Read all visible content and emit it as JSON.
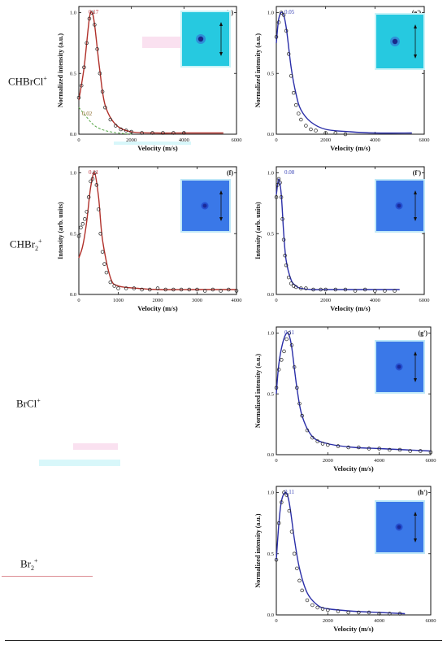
{
  "row_labels": {
    "chbrcl": {
      "base": "CHBrCl",
      "sup": "+"
    },
    "chbr2": {
      "base": "CHBr",
      "sub": "2",
      "sup": "+"
    },
    "brcl": {
      "base": "BrCl",
      "sup": "+"
    },
    "br2": {
      "base": "Br",
      "sub": "2",
      "sup": "+"
    }
  },
  "colors": {
    "red_fit": "#b0302a",
    "blue_fit": "#2a2ea8",
    "data_points": "#222222",
    "dashed_component": "#5aa84a",
    "panel_e_inset_bg": "#26c9e0",
    "panel_blue_inset_bg": "#3a78e8",
    "pink_annotation": "#c0303a",
    "blue_annotation": "#3b46b8"
  },
  "chart_data": [
    {
      "panel": "e",
      "tag": "(e)",
      "type": "line",
      "xlabel": "Velocity (m/s)",
      "ylabel": "Normalized intensity (a.u.)",
      "xlim": [
        0,
        6000
      ],
      "ylim": [
        0,
        1.05
      ],
      "xticks": [
        0,
        2000,
        4000,
        6000
      ],
      "yticks": [
        0.0,
        0.5,
        1.0
      ],
      "xtick_labels": [
        "0",
        "2000",
        "4000",
        "6000"
      ],
      "ytick_labels": [
        "0.0",
        "0.5",
        "1.0"
      ],
      "annotations": [
        "0.17",
        "0.02"
      ],
      "fit_color": "red",
      "points": {
        "x": [
          0,
          100,
          200,
          300,
          400,
          500,
          600,
          700,
          800,
          900,
          1000,
          1200,
          1400,
          1600,
          1800,
          2000,
          2400,
          2800,
          3200,
          3600,
          4000
        ],
        "y": [
          0.3,
          0.4,
          0.55,
          0.75,
          0.95,
          1.0,
          0.9,
          0.7,
          0.5,
          0.35,
          0.22,
          0.12,
          0.07,
          0.04,
          0.03,
          0.02,
          0.01,
          0.01,
          0.01,
          0.01,
          0.01
        ]
      },
      "fit": {
        "x": [
          0,
          200,
          400,
          500,
          600,
          800,
          1000,
          1400,
          2000,
          3000,
          4000,
          5500
        ],
        "y": [
          0.28,
          0.55,
          0.95,
          1.0,
          0.9,
          0.52,
          0.24,
          0.08,
          0.02,
          0.01,
          0.01,
          0.01
        ]
      },
      "component": {
        "x": [
          0,
          300,
          600,
          1000,
          1500,
          2000
        ],
        "y": [
          0.22,
          0.14,
          0.07,
          0.03,
          0.01,
          0.0
        ]
      },
      "inset": "cyan"
    },
    {
      "panel": "e'",
      "tag": "(e')",
      "type": "line",
      "xlabel": "Velocity (m/s)",
      "ylabel": "Normalized intensity (a.u.)",
      "xlim": [
        0,
        6000
      ],
      "ylim": [
        0,
        1.05
      ],
      "xticks": [
        0,
        2000,
        4000,
        6000
      ],
      "yticks": [
        0.0,
        0.5,
        1.0
      ],
      "xtick_labels": [
        "0",
        "2000",
        "4000",
        "6000"
      ],
      "ytick_labels": [
        "0.0",
        "0.5",
        "1.0"
      ],
      "annotations": [
        "0.05"
      ],
      "fit_color": "blue",
      "points": {
        "x": [
          0,
          100,
          200,
          300,
          400,
          500,
          600,
          700,
          800,
          900,
          1000,
          1200,
          1400,
          1600,
          2000,
          2400,
          2800
        ],
        "y": [
          0.8,
          0.92,
          1.0,
          0.98,
          0.85,
          0.66,
          0.48,
          0.34,
          0.24,
          0.17,
          0.12,
          0.07,
          0.04,
          0.03,
          0.01,
          0.01,
          0.0
        ]
      },
      "fit": {
        "x": [
          0,
          100,
          250,
          400,
          600,
          800,
          1000,
          1400,
          2000,
          3000,
          4000,
          5500
        ],
        "y": [
          0.75,
          0.95,
          1.0,
          0.88,
          0.55,
          0.33,
          0.2,
          0.1,
          0.04,
          0.02,
          0.01,
          0.01
        ]
      },
      "inset": "cyan"
    },
    {
      "panel": "f",
      "tag": "(f)",
      "type": "line",
      "xlabel": "Velocity (m/s)",
      "ylabel": "Intensity (arb. units)",
      "xlim": [
        0,
        4000
      ],
      "ylim": [
        0,
        1.05
      ],
      "xticks": [
        0,
        1000,
        2000,
        3000,
        4000
      ],
      "yticks": [
        0.0,
        0.5,
        1.0
      ],
      "xtick_labels": [
        "0",
        "1000",
        "2000",
        "3000",
        "4000"
      ],
      "ytick_labels": [
        "0.0",
        "0.5",
        "1.0"
      ],
      "annotations": [
        "0.11"
      ],
      "fit_color": "red",
      "points": {
        "x": [
          0,
          50,
          100,
          150,
          200,
          250,
          300,
          350,
          400,
          450,
          500,
          550,
          600,
          650,
          700,
          800,
          900,
          1000,
          1200,
          1400,
          1600,
          1800,
          2000,
          2200,
          2400,
          2600,
          2800,
          3000,
          3200,
          3400,
          3600,
          3800,
          4000
        ],
        "y": [
          0.48,
          0.55,
          0.58,
          0.62,
          0.68,
          0.8,
          0.93,
          0.95,
          1.0,
          0.9,
          0.7,
          0.5,
          0.35,
          0.25,
          0.18,
          0.1,
          0.07,
          0.05,
          0.05,
          0.05,
          0.04,
          0.04,
          0.05,
          0.04,
          0.04,
          0.04,
          0.04,
          0.04,
          0.03,
          0.04,
          0.03,
          0.04,
          0.03
        ]
      },
      "fit": {
        "x": [
          0,
          100,
          200,
          300,
          400,
          500,
          600,
          800,
          1000,
          1500,
          2000,
          3000,
          4000
        ],
        "y": [
          0.3,
          0.4,
          0.6,
          0.88,
          1.0,
          0.8,
          0.45,
          0.14,
          0.07,
          0.05,
          0.04,
          0.04,
          0.04
        ]
      },
      "inset": "blue"
    },
    {
      "panel": "f'",
      "tag": "(f')",
      "type": "line",
      "xlabel": "Velocity (m/s)",
      "ylabel": "Intensity (arb. units)",
      "xlim": [
        0,
        6000
      ],
      "ylim": [
        0,
        1.05
      ],
      "xticks": [
        0,
        2000,
        4000,
        6000
      ],
      "yticks": [
        0.0,
        0.5,
        1.0
      ],
      "xtick_labels": [
        "0",
        "2000",
        "4000",
        "6000"
      ],
      "ytick_labels": [
        "0.0",
        "0.5",
        "1.0"
      ],
      "annotations": [
        "0.08"
      ],
      "fit_color": "blue",
      "points": {
        "x": [
          0,
          50,
          100,
          150,
          200,
          250,
          300,
          350,
          400,
          500,
          600,
          700,
          800,
          1000,
          1200,
          1500,
          1800,
          2000,
          2400,
          2800,
          3200,
          3600,
          4000,
          4400,
          4800
        ],
        "y": [
          0.8,
          0.9,
          0.95,
          0.92,
          0.8,
          0.62,
          0.45,
          0.32,
          0.24,
          0.14,
          0.09,
          0.07,
          0.06,
          0.05,
          0.05,
          0.04,
          0.04,
          0.04,
          0.04,
          0.04,
          0.03,
          0.04,
          0.03,
          0.03,
          0.03
        ]
      },
      "fit": {
        "x": [
          0,
          100,
          200,
          300,
          400,
          600,
          800,
          1000,
          1500,
          2000,
          3000,
          4000,
          5000
        ],
        "y": [
          0.82,
          0.95,
          0.82,
          0.5,
          0.28,
          0.12,
          0.07,
          0.05,
          0.04,
          0.04,
          0.04,
          0.04,
          0.04
        ]
      },
      "inset": "blue"
    },
    {
      "panel": "g'",
      "tag": "(g')",
      "type": "line",
      "xlabel": "Velocity (m/s)",
      "ylabel": "Normalized intensity (a.u.)",
      "xlim": [
        0,
        6000
      ],
      "ylim": [
        0,
        1.05
      ],
      "xticks": [
        0,
        2000,
        4000,
        6000
      ],
      "yticks": [
        0.0,
        0.5,
        1.0
      ],
      "xtick_labels": [
        "0",
        "2000",
        "4000",
        "6000"
      ],
      "ytick_labels": [
        "0.0",
        "0.5",
        "1.0"
      ],
      "annotations": [
        "0.11"
      ],
      "fit_color": "blue",
      "points": {
        "x": [
          0,
          100,
          200,
          300,
          400,
          500,
          600,
          700,
          800,
          900,
          1000,
          1200,
          1400,
          1600,
          1800,
          2000,
          2400,
          2800,
          3200,
          3600,
          4000,
          4400,
          4800,
          5200,
          5600,
          6000
        ],
        "y": [
          0.55,
          0.7,
          0.78,
          0.85,
          0.95,
          1.0,
          0.9,
          0.72,
          0.55,
          0.42,
          0.32,
          0.2,
          0.14,
          0.11,
          0.09,
          0.08,
          0.07,
          0.06,
          0.06,
          0.05,
          0.05,
          0.04,
          0.04,
          0.03,
          0.03,
          0.02
        ]
      },
      "fit": {
        "x": [
          0,
          100,
          250,
          400,
          500,
          600,
          800,
          1000,
          1400,
          2000,
          3000,
          4000,
          5000,
          6000
        ],
        "y": [
          0.5,
          0.75,
          0.92,
          1.0,
          0.98,
          0.88,
          0.55,
          0.32,
          0.15,
          0.09,
          0.06,
          0.05,
          0.04,
          0.03
        ]
      },
      "inset": "blue"
    },
    {
      "panel": "h'",
      "tag": "(h')",
      "type": "line",
      "xlabel": "Velocity (m/s)",
      "ylabel": "Normalized intensity (a.u.)",
      "xlim": [
        0,
        6000
      ],
      "ylim": [
        0,
        1.05
      ],
      "xticks": [
        0,
        2000,
        4000,
        6000
      ],
      "yticks": [
        0.0,
        0.5,
        1.0
      ],
      "xtick_labels": [
        "0",
        "2000",
        "4000",
        "6000"
      ],
      "ytick_labels": [
        "0.0",
        "0.5",
        "1.0"
      ],
      "annotations": [
        "0.11"
      ],
      "fit_color": "blue",
      "points": {
        "x": [
          0,
          100,
          200,
          300,
          400,
          500,
          600,
          700,
          800,
          900,
          1000,
          1200,
          1400,
          1600,
          1800,
          2000,
          2400,
          2800,
          3200,
          3600,
          4000,
          4400,
          4800
        ],
        "y": [
          0.45,
          0.75,
          0.92,
          1.0,
          0.98,
          0.85,
          0.68,
          0.5,
          0.38,
          0.28,
          0.2,
          0.12,
          0.08,
          0.06,
          0.05,
          0.04,
          0.03,
          0.02,
          0.02,
          0.02,
          0.01,
          0.01,
          0.01
        ]
      },
      "fit": {
        "x": [
          0,
          100,
          200,
          350,
          500,
          700,
          900,
          1200,
          1600,
          2000,
          3000,
          4000,
          5000
        ],
        "y": [
          0.45,
          0.75,
          0.93,
          1.0,
          0.92,
          0.62,
          0.38,
          0.18,
          0.08,
          0.05,
          0.03,
          0.02,
          0.01
        ]
      },
      "inset": "blue"
    }
  ]
}
